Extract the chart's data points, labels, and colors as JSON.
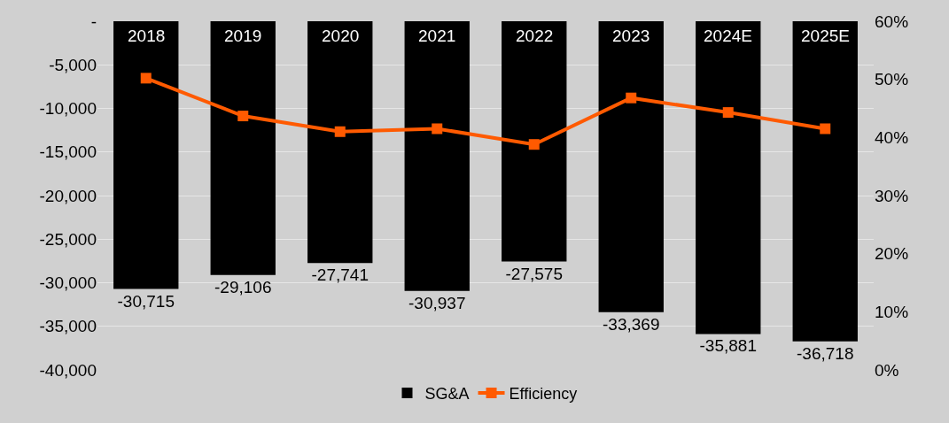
{
  "chart_data": {
    "type": "bar",
    "categories": [
      "2018",
      "2019",
      "2020",
      "2021",
      "2022",
      "2023",
      "2024E",
      "2025E"
    ],
    "series": [
      {
        "name": "SG&A",
        "color": "#000000",
        "values": [
          -30715,
          -29106,
          -27741,
          -30937,
          -27575,
          -33369,
          -35881,
          -36718
        ],
        "value_labels": [
          "-30,715",
          "-29,106",
          "-27,741",
          "-30,937",
          "-27,575",
          "-33,369",
          "-35,881",
          "-36,718"
        ]
      },
      {
        "name": "Efficiency",
        "type": "line",
        "axis": "y2",
        "color": "#ff5a00",
        "marker": "square",
        "line_style": "solid",
        "values": [
          50.2,
          43.7,
          41.0,
          41.5,
          38.8,
          46.8,
          44.3,
          41.5
        ]
      }
    ],
    "ylim": [
      -40000,
      0
    ],
    "yticks": [
      {
        "value": -40000,
        "label": "-40,000"
      },
      {
        "value": -35000,
        "label": "-35,000"
      },
      {
        "value": -30000,
        "label": "-30,000"
      },
      {
        "value": -25000,
        "label": "-25,000"
      },
      {
        "value": -20000,
        "label": "-20,000"
      },
      {
        "value": -15000,
        "label": "-15,000"
      },
      {
        "value": -10000,
        "label": "-10,000"
      },
      {
        "value": -5000,
        "label": "-5,000"
      },
      {
        "value": 0,
        "label": "-"
      }
    ],
    "y2lim": [
      0,
      60
    ],
    "y2ticks": [
      {
        "value": 0,
        "label": "0%"
      },
      {
        "value": 10,
        "label": "10%"
      },
      {
        "value": 20,
        "label": "20%"
      },
      {
        "value": 30,
        "label": "30%"
      },
      {
        "value": 40,
        "label": "40%"
      },
      {
        "value": 50,
        "label": "50%"
      },
      {
        "value": 60,
        "label": "60%"
      }
    ],
    "grid": "y",
    "legend": "bottom"
  }
}
